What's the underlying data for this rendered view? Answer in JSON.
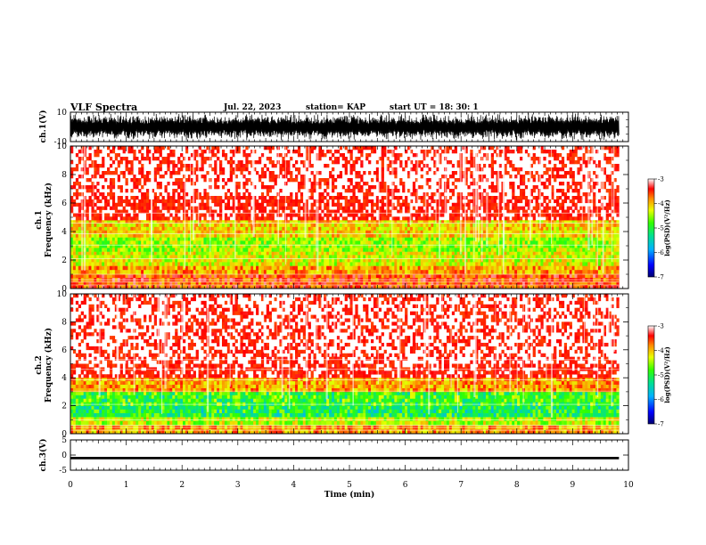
{
  "header": {
    "title": "VLF Spectra",
    "date": "Jul. 22, 2023",
    "station": "station= KAP",
    "start_ut": "start UT =  18: 30: 1"
  },
  "chart_data": [
    {
      "type": "line",
      "panel": "ch1-waveform",
      "ylabel": "ch.1(V)",
      "ylim": [
        -10,
        10
      ],
      "yticks": [
        "10",
        "-10"
      ],
      "xlim": [
        0,
        10
      ],
      "description_values": "dense saturated waveform oscillating between about -9 and +9 V for 0–9.83 min"
    },
    {
      "type": "heatmap",
      "panel": "ch1-spectrogram",
      "ylabel": "ch.1\nFrequency (kHz)",
      "ylim": [
        0,
        10
      ],
      "yticks": [
        "0",
        "2",
        "4",
        "6",
        "8",
        "10"
      ],
      "xlim": [
        0,
        10
      ],
      "data_end_min": 9.83,
      "bands": [
        {
          "from_khz": 0.0,
          "to_khz": 0.5,
          "level": -3.6
        },
        {
          "from_khz": 0.5,
          "to_khz": 1.0,
          "level": -3.6
        },
        {
          "from_khz": 1.0,
          "to_khz": 1.6,
          "level": -3.9
        },
        {
          "from_khz": 1.6,
          "to_khz": 2.6,
          "level": -4.3
        },
        {
          "from_khz": 2.6,
          "to_khz": 3.6,
          "level": -4.5
        },
        {
          "from_khz": 3.6,
          "to_khz": 4.8,
          "level": -4.1
        },
        {
          "from_khz": 4.8,
          "to_khz": 6.5,
          "level": -3.4
        },
        {
          "from_khz": 6.5,
          "to_khz": 10.0,
          "level": -3.1
        }
      ],
      "colorbar": {
        "label": "log(PSD)(V²/Hz)",
        "range": [
          -7,
          -3
        ],
        "ticks": [
          "-3",
          "-4",
          "-5",
          "-6",
          "-7"
        ]
      }
    },
    {
      "type": "heatmap",
      "panel": "ch2-spectrogram",
      "ylabel": "ch.2\nFrequency (kHz)",
      "ylim": [
        0,
        10
      ],
      "yticks": [
        "0",
        "2",
        "4",
        "6",
        "8",
        "10"
      ],
      "xlim": [
        0,
        10
      ],
      "data_end_min": 9.83,
      "bands": [
        {
          "from_khz": 0.0,
          "to_khz": 0.6,
          "level": -3.9
        },
        {
          "from_khz": 0.6,
          "to_khz": 1.2,
          "level": -4.4
        },
        {
          "from_khz": 1.2,
          "to_khz": 2.0,
          "level": -4.9
        },
        {
          "from_khz": 2.0,
          "to_khz": 3.0,
          "level": -4.7
        },
        {
          "from_khz": 3.0,
          "to_khz": 4.0,
          "level": -3.9
        },
        {
          "from_khz": 4.0,
          "to_khz": 5.0,
          "level": -3.4
        },
        {
          "from_khz": 5.0,
          "to_khz": 10.0,
          "level": -3.1
        }
      ],
      "colorbar": {
        "label": "log(PSD)(V²/Hz)",
        "range": [
          -7,
          -3
        ],
        "ticks": [
          "-3",
          "-4",
          "-5",
          "-6",
          "-7"
        ]
      }
    },
    {
      "type": "line",
      "panel": "ch3-waveform",
      "ylabel": "ch.3(V)",
      "ylim": [
        -5,
        5
      ],
      "yticks": [
        "5",
        "0",
        "-5"
      ],
      "xlim": [
        0,
        10
      ],
      "values_band": [
        -1.4,
        -0.6
      ],
      "xlabel": "Time (min)",
      "xticks": [
        "0",
        "1",
        "2",
        "3",
        "4",
        "5",
        "6",
        "7",
        "8",
        "9",
        "10"
      ]
    }
  ],
  "colors": {
    "scale": [
      "#000080",
      "#0000ff",
      "#00a0ff",
      "#00e0a0",
      "#30ff00",
      "#e0ff00",
      "#ff8000",
      "#ff0000",
      "#ffffff"
    ]
  }
}
